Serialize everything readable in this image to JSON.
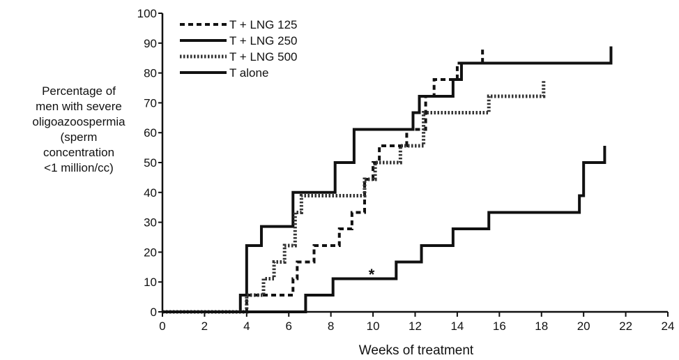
{
  "chart_data": {
    "type": "line",
    "step": true,
    "xlabel": "Weeks of treatment",
    "ylabel_lines": [
      "Percentage of",
      "men with severe",
      "oligoazoospermia",
      "(sperm",
      "concentration",
      "<1 million/cc)"
    ],
    "xlim": [
      0,
      24
    ],
    "ylim": [
      0,
      100
    ],
    "xticks": [
      "0",
      "2",
      "4",
      "6",
      "8",
      "10",
      "12",
      "14",
      "16",
      "18",
      "20",
      "22",
      "24"
    ],
    "yticks": [
      "0",
      "10",
      "20",
      "30",
      "40",
      "50",
      "60",
      "70",
      "80",
      "90",
      "100"
    ],
    "grid": false,
    "legend_position": "top-left",
    "annotation": "*",
    "series": [
      {
        "name": "T + LNG 125",
        "style": "short-dash",
        "x": [
          0,
          4.0,
          4.1,
          6.2,
          6.4,
          7.2,
          8.4,
          9.0,
          9.6,
          10.0,
          10.3,
          11.6,
          12.5,
          12.9,
          13.6,
          14.0,
          14.2,
          15.2
        ],
        "y": [
          0,
          5.6,
          5.6,
          11.1,
          16.7,
          22.2,
          27.8,
          33.3,
          44.4,
          50.0,
          55.6,
          61.1,
          72.2,
          77.8,
          77.8,
          83.3,
          83.3,
          88.9
        ]
      },
      {
        "name": "T + LNG 250",
        "style": "solid",
        "x": [
          0,
          3.7,
          4.0,
          4.7,
          6.2,
          8.2,
          9.1,
          11.9,
          12.2,
          13.8,
          14.2,
          21.3
        ],
        "y": [
          0,
          5.6,
          22.2,
          28.6,
          40.0,
          50.0,
          61.1,
          66.7,
          72.2,
          77.8,
          83.3,
          88.9
        ]
      },
      {
        "name": "T + LNG 500",
        "style": "hatched",
        "x": [
          0,
          3.7,
          4.0,
          4.1,
          4.8,
          5.3,
          5.8,
          6.3,
          6.6,
          9.6,
          9.8,
          10.1,
          11.3,
          12.4,
          15.5,
          18.1
        ],
        "y": [
          0,
          0,
          5.6,
          5.6,
          11.1,
          16.7,
          22.2,
          33.3,
          38.9,
          44.4,
          44.4,
          50.0,
          55.6,
          66.7,
          72.2,
          77.8
        ]
      },
      {
        "name": "T alone",
        "style": "solid",
        "x": [
          0,
          6.8,
          8.1,
          11.1,
          12.3,
          13.8,
          15.5,
          19.8,
          20.0,
          21.0
        ],
        "y": [
          0,
          5.6,
          11.1,
          16.7,
          22.2,
          27.8,
          33.3,
          38.9,
          50.0,
          55.6
        ]
      }
    ]
  }
}
